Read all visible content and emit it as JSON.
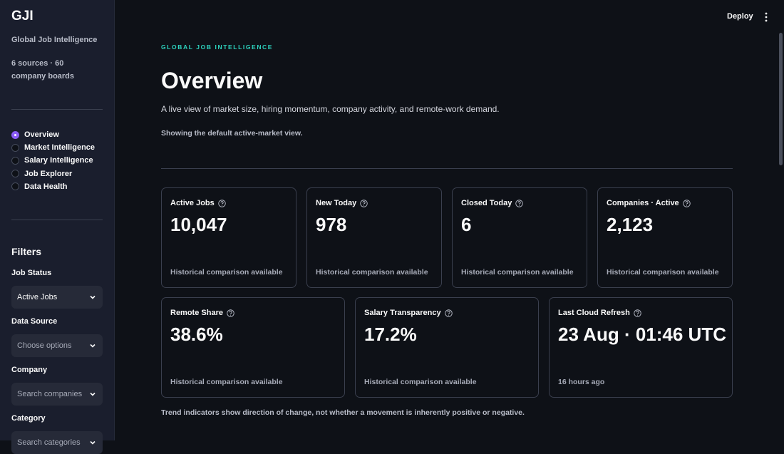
{
  "sidebar": {
    "brand": "GJI",
    "tagline": "Global Job Intelligence",
    "sources": "6 sources · 60 company boards",
    "nav": [
      "Overview",
      "Market Intelligence",
      "Salary Intelligence",
      "Job Explorer",
      "Data Health"
    ],
    "filters": {
      "title": "Filters",
      "fields": [
        {
          "label": "Job Status",
          "value": "Active Jobs"
        },
        {
          "label": "Data Source",
          "value": "Choose options"
        },
        {
          "label": "Company",
          "value": "Search companies"
        },
        {
          "label": "Category",
          "value": "Search categories"
        }
      ]
    }
  },
  "header": {
    "deploy": "Deploy"
  },
  "main": {
    "eyebrow": "GLOBAL JOB INTELLIGENCE",
    "title": "Overview",
    "subtitle": "A live view of market size, hiring momentum, company activity, and remote-work demand.",
    "note": "Showing the default active-market view.",
    "cards_row1": [
      {
        "label": "Active Jobs",
        "value": "10,047",
        "note": "Historical comparison available"
      },
      {
        "label": "New Today",
        "value": "978",
        "note": "Historical comparison available"
      },
      {
        "label": "Closed Today",
        "value": "6",
        "note": "Historical comparison available"
      },
      {
        "label": "Companies · Active",
        "value": "2,123",
        "note": "Historical comparison available"
      }
    ],
    "cards_row2": [
      {
        "label": "Remote Share",
        "value": "38.6%",
        "note": "Historical comparison available"
      },
      {
        "label": "Salary Transparency",
        "value": "17.2%",
        "note": "Historical comparison available"
      },
      {
        "label": "Last Cloud Refresh",
        "value": "23 Aug · 01:46 UTC",
        "note": "16 hours ago"
      }
    ],
    "footnote": "Trend indicators show direction of change, not whether a movement is inherently positive or negative."
  }
}
